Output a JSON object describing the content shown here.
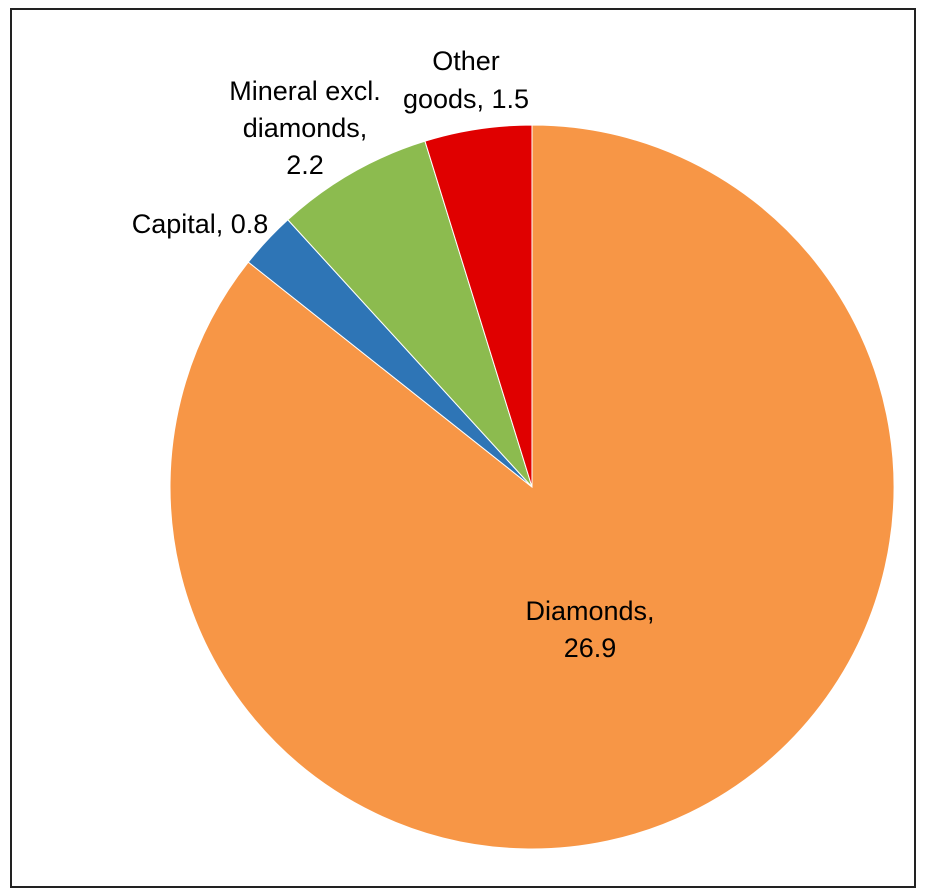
{
  "chart_data": {
    "type": "pie",
    "title": "",
    "slices": [
      {
        "name": "Diamonds",
        "value": 26.9,
        "color": "#F79646",
        "label_lines": [
          "Diamonds,",
          "26.9"
        ]
      },
      {
        "name": "Capital",
        "value": 0.8,
        "color": "#2E75B6",
        "label_lines": [
          "Capital, 0.8"
        ]
      },
      {
        "name": "Mineral excl. diamonds",
        "value": 2.2,
        "color": "#8CBB4F",
        "label_lines": [
          "Mineral excl.",
          "diamonds,",
          "2.2"
        ]
      },
      {
        "name": "Other goods",
        "value": 1.5,
        "color": "#E00000",
        "label_lines": [
          "Other",
          "goods, 1.5"
        ]
      }
    ],
    "start": "12 o'clock",
    "direction": "clockwise",
    "legend": "none"
  }
}
